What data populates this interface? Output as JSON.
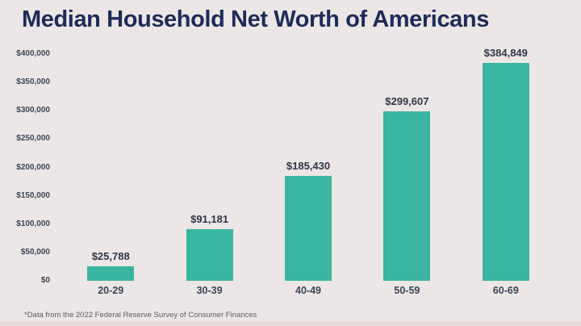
{
  "page": {
    "title": "Median Household Net Worth of Americans",
    "footnote": "*Data from the 2022 Federal Reserve Survey of Consumer Finances"
  },
  "colors": {
    "background": "#ECE7E6",
    "bottom_edge": "#E2DBDA",
    "bar": "#3AB5A1",
    "title_text": "#1D2B5A",
    "axis_text": "#3C4356",
    "value_label_text": "#2F3548",
    "footnote_text": "#5C5A60"
  },
  "chart_data": {
    "type": "bar",
    "title": "Median Household Net Worth of Americans",
    "categories": [
      "20-29",
      "30-39",
      "40-49",
      "50-59",
      "60-69"
    ],
    "values": [
      25788,
      91181,
      185430,
      299607,
      384849
    ],
    "value_labels": [
      "$25,788",
      "$91,181",
      "$185,430",
      "$299,607",
      "$384,849"
    ],
    "xlabel": "",
    "ylabel": "",
    "ylim": [
      0,
      400000
    ],
    "ytick_interval": 50000,
    "ytick_labels": [
      "$0",
      "$50,000",
      "$100,000",
      "$150,000",
      "$200,000",
      "$250,000",
      "$300,000",
      "$350,000",
      "$400,000"
    ],
    "grid": false,
    "legend": false,
    "source_note": "*Data from the 2022 Federal Reserve Survey of Consumer Finances"
  }
}
